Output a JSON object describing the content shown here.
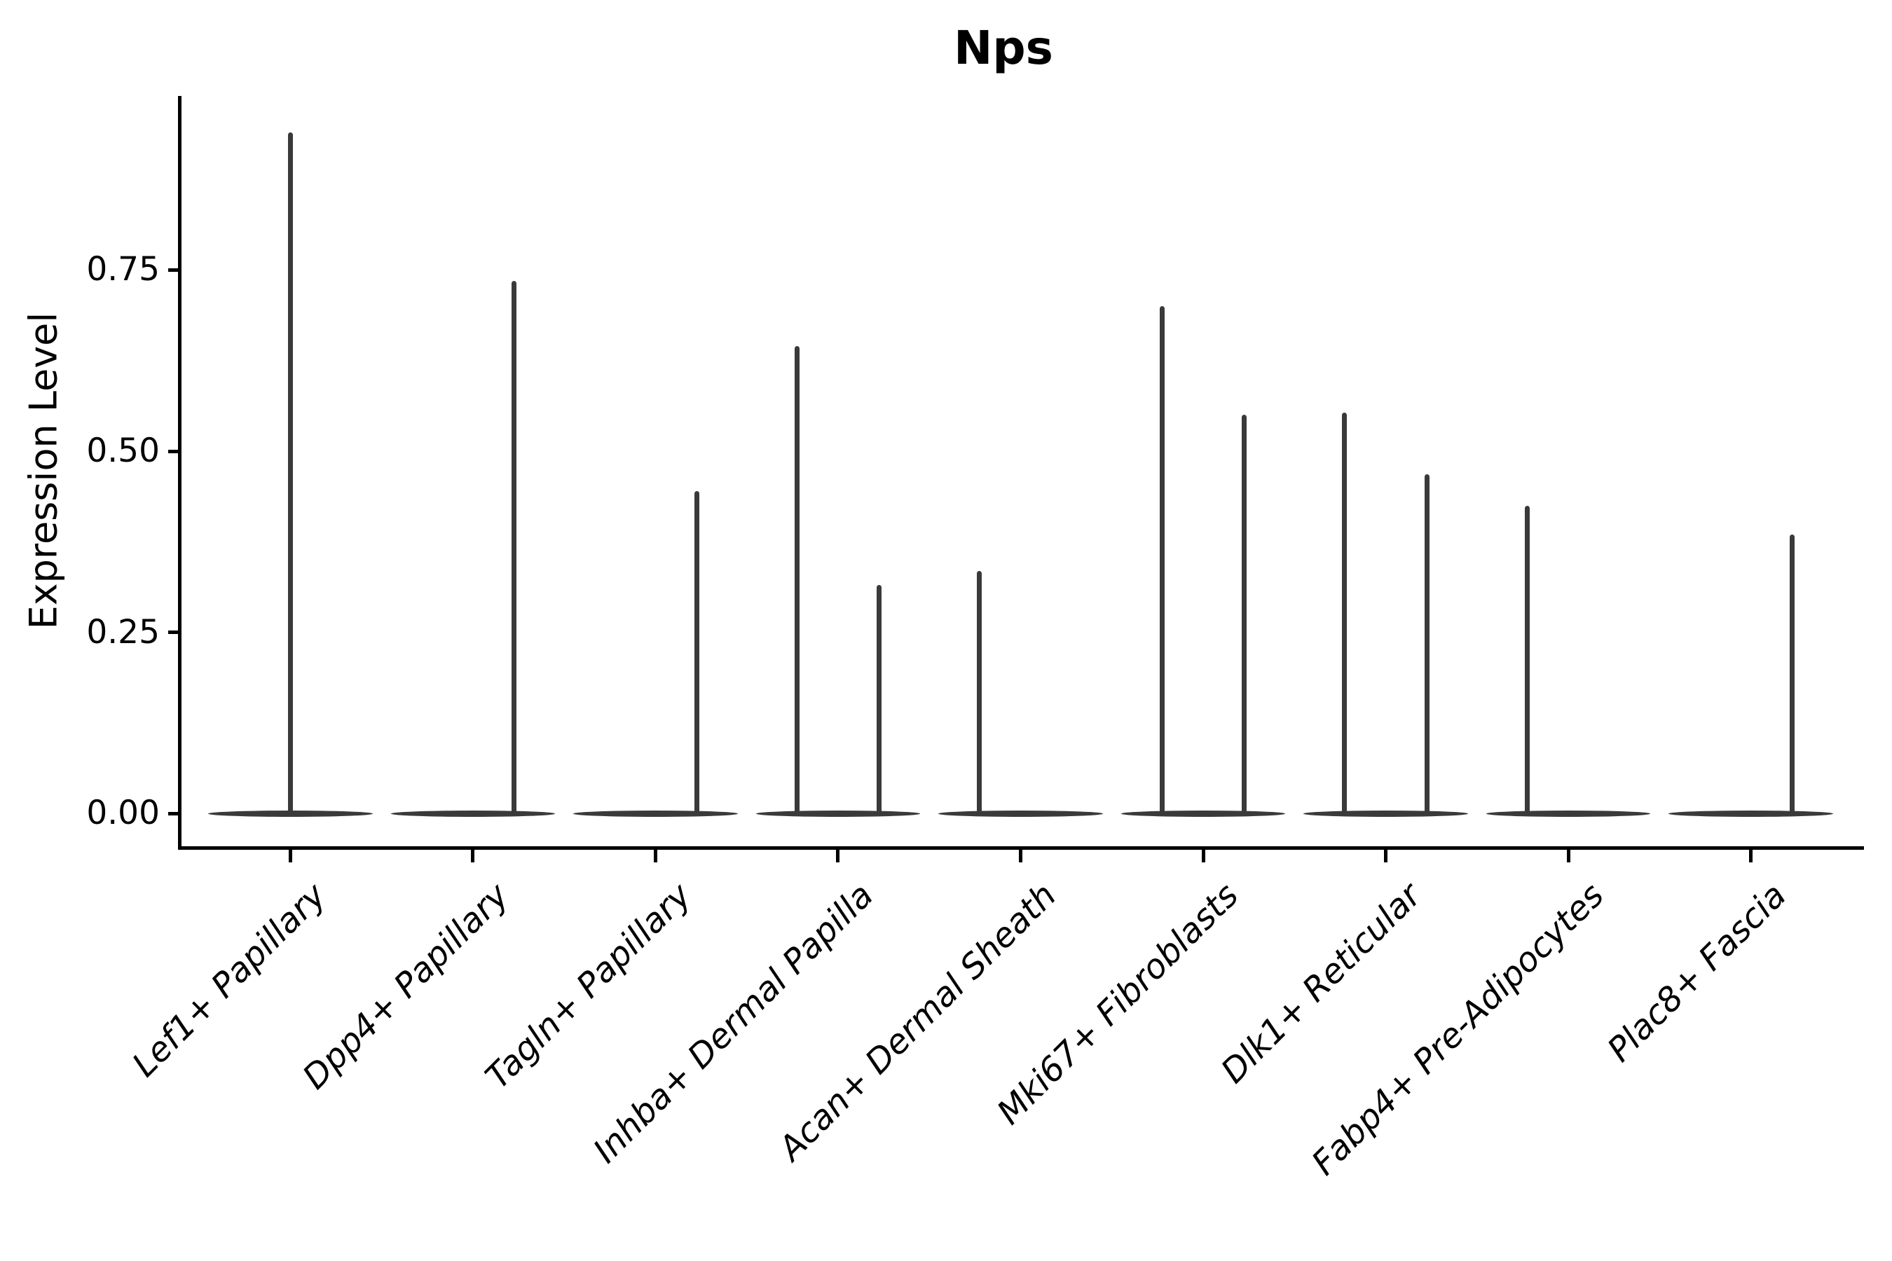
{
  "title": "Nps",
  "y_axis": {
    "label": "Expression Level",
    "tick_labels": [
      "0.00",
      "0.25",
      "0.50",
      "0.75"
    ]
  },
  "chart_data": {
    "type": "violin",
    "title": "Nps",
    "xlabel": "",
    "ylabel": "Expression Level",
    "ylim": [
      -0.045,
      0.99
    ],
    "yticks": [
      0,
      0.25,
      0.5,
      0.75
    ],
    "ytick_labels": [
      "0.00",
      "0.25",
      "0.50",
      "0.75"
    ],
    "grid": false,
    "legend_position": "none",
    "categories": [
      "Lef1+ Papillary",
      "Dpp4+ Papillary",
      "Tagln+ Papillary",
      "Inhba+ Dermal Papilla",
      "Acan+ Dermal Sheath",
      "Mki67+ Fibroblasts",
      "Dlk1+ Reticular",
      "Fabp4+ Pre-Adipocytes",
      "Plac8+ Fascia"
    ],
    "description": "Violin plot of Nps expression; each cell type shows a flattened violin body at expression 0 with thin spikes rising to the maximum expression of sub-violins",
    "violins": [
      {
        "category": "Lef1+ Papillary",
        "spikes": [
          {
            "pos": "center",
            "max": 0.94
          }
        ]
      },
      {
        "category": "Dpp4+ Papillary",
        "spikes": [
          {
            "pos": "right",
            "max": 0.735
          }
        ]
      },
      {
        "category": "Tagln+ Papillary",
        "spikes": [
          {
            "pos": "right",
            "max": 0.445
          }
        ]
      },
      {
        "category": "Inhba+ Dermal Papilla",
        "spikes": [
          {
            "pos": "left",
            "max": 0.645
          },
          {
            "pos": "right",
            "max": 0.315
          }
        ]
      },
      {
        "category": "Acan+ Dermal Sheath",
        "spikes": [
          {
            "pos": "left",
            "max": 0.335
          }
        ]
      },
      {
        "category": "Mki67+ Fibroblasts",
        "spikes": [
          {
            "pos": "left",
            "max": 0.7
          },
          {
            "pos": "right",
            "max": 0.55
          }
        ]
      },
      {
        "category": "Dlk1+ Reticular",
        "spikes": [
          {
            "pos": "left",
            "max": 0.553
          },
          {
            "pos": "right",
            "max": 0.468
          }
        ]
      },
      {
        "category": "Fabp4+ Pre-Adipocytes",
        "spikes": [
          {
            "pos": "left",
            "max": 0.425
          }
        ]
      },
      {
        "category": "Plac8+ Fascia",
        "spikes": [
          {
            "pos": "right",
            "max": 0.385
          }
        ]
      }
    ],
    "baseline_value": 0,
    "colors": {
      "violin": "#3A3A3A",
      "axis": "#000000",
      "text": "#000000",
      "background": "#FFFFFF"
    }
  }
}
